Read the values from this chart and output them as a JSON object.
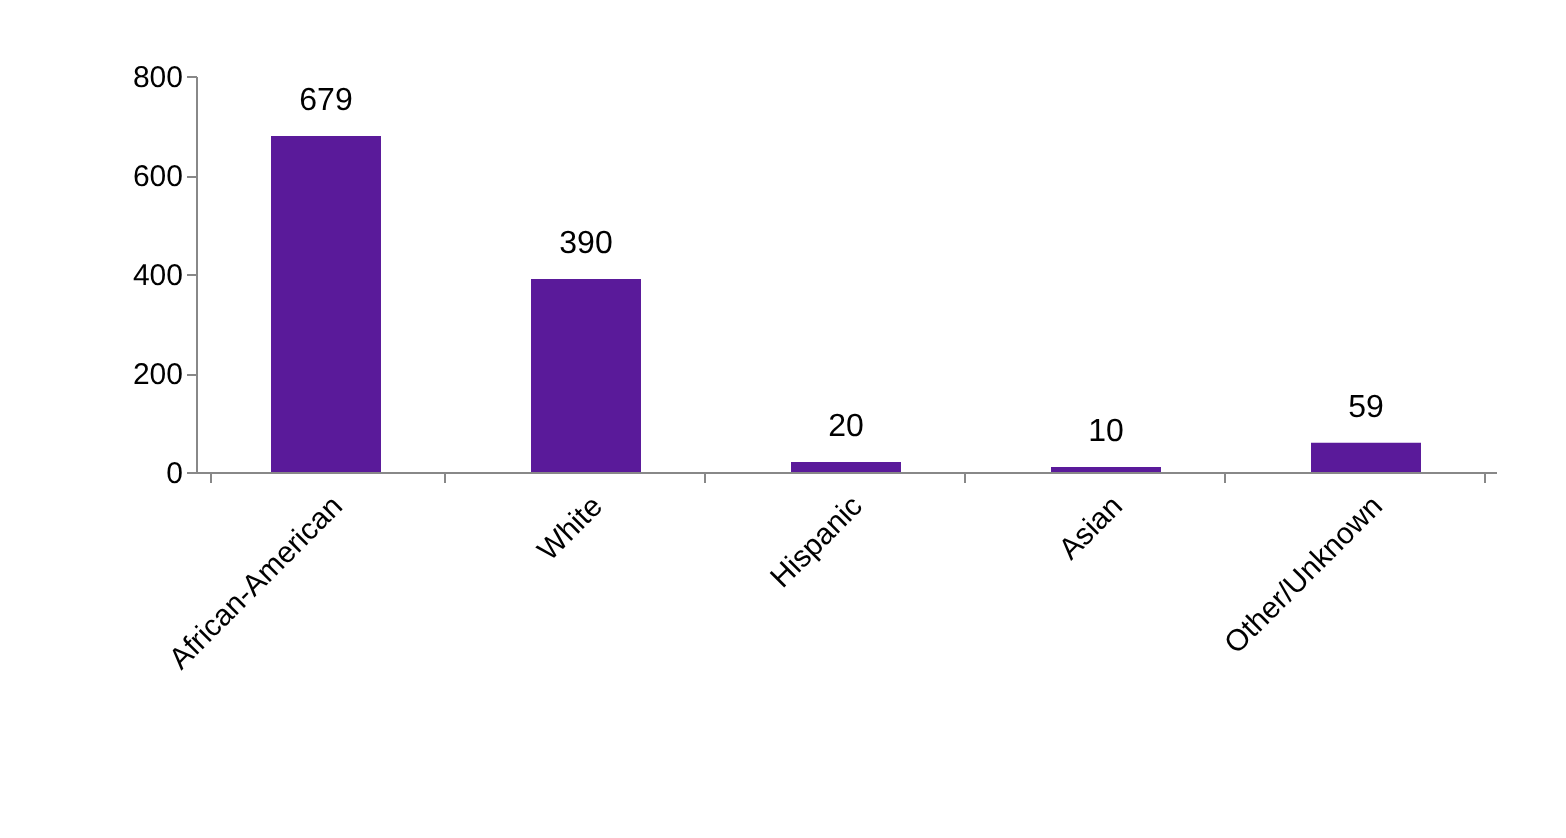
{
  "chart_data": {
    "type": "bar",
    "categories": [
      "African-American",
      "White",
      "Hispanic",
      "Asian",
      "Other/Unknown"
    ],
    "values": [
      679,
      390,
      20,
      10,
      59
    ],
    "color": "#5a1a9a",
    "ylim": [
      0,
      800
    ],
    "yticks": [
      0,
      200,
      400,
      600,
      800
    ],
    "grid": false,
    "data_labels": true
  }
}
